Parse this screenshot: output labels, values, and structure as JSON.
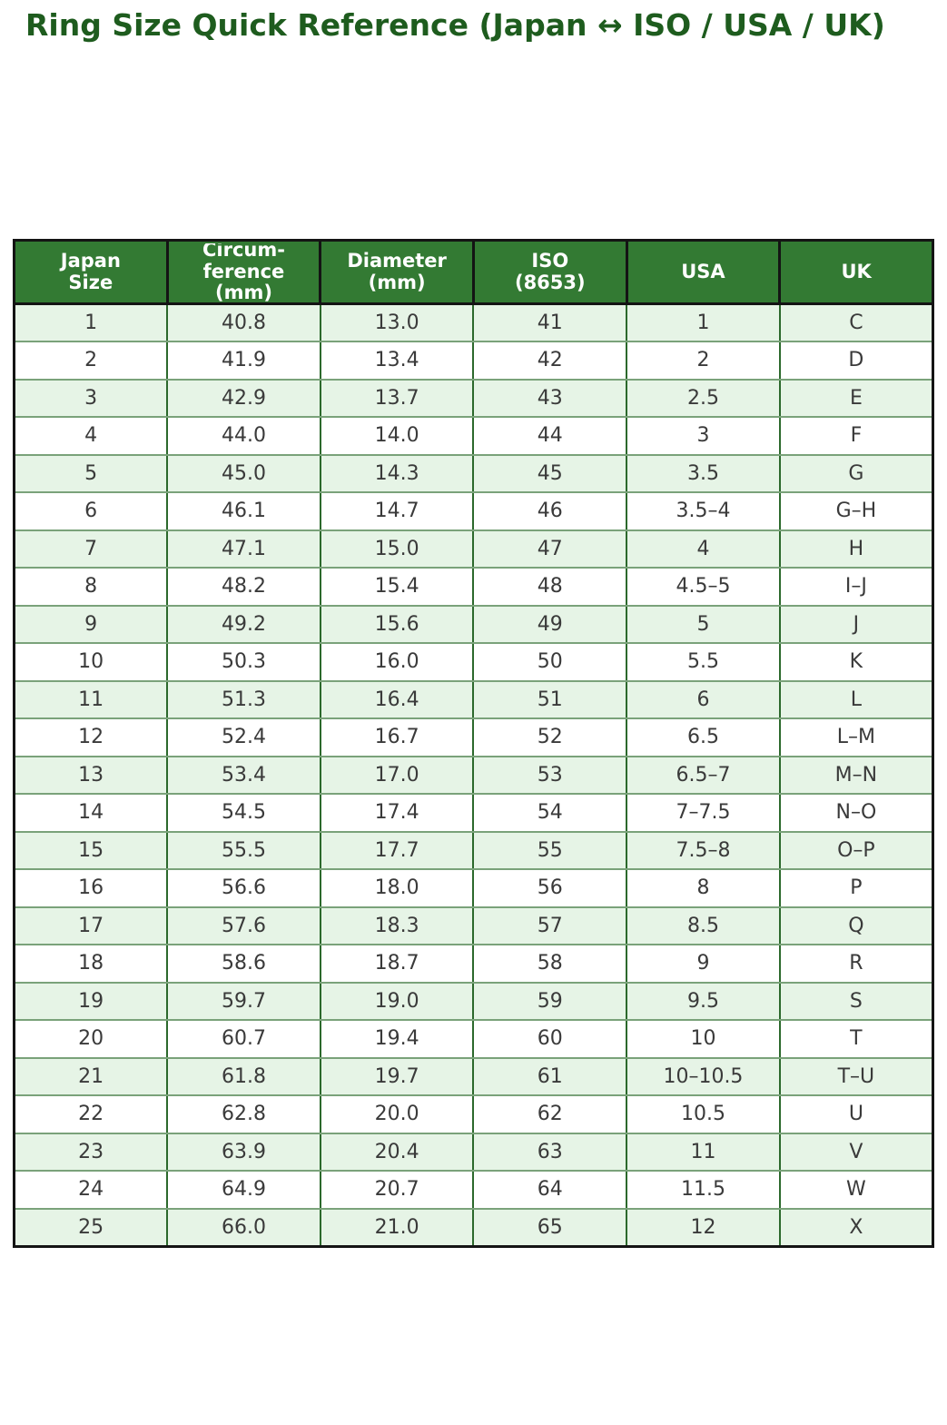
{
  "title": "Ring Size Quick Reference (Japan ↔ ISO / USA / UK)",
  "chart_data": {
    "type": "table",
    "headers": [
      "Japan\nSize",
      "Circum-\nference\n(mm)",
      "Diameter\n(mm)",
      "ISO\n(8653)",
      "USA",
      "UK"
    ],
    "columns": [
      "Japan Size",
      "Circumference (mm)",
      "Diameter (mm)",
      "ISO (8653)",
      "USA",
      "UK"
    ],
    "rows": [
      [
        "1",
        "40.8",
        "13.0",
        "41",
        "1",
        "C"
      ],
      [
        "2",
        "41.9",
        "13.4",
        "42",
        "2",
        "D"
      ],
      [
        "3",
        "42.9",
        "13.7",
        "43",
        "2.5",
        "E"
      ],
      [
        "4",
        "44.0",
        "14.0",
        "44",
        "3",
        "F"
      ],
      [
        "5",
        "45.0",
        "14.3",
        "45",
        "3.5",
        "G"
      ],
      [
        "6",
        "46.1",
        "14.7",
        "46",
        "3.5–4",
        "G–H"
      ],
      [
        "7",
        "47.1",
        "15.0",
        "47",
        "4",
        "H"
      ],
      [
        "8",
        "48.2",
        "15.4",
        "48",
        "4.5–5",
        "I–J"
      ],
      [
        "9",
        "49.2",
        "15.6",
        "49",
        "5",
        "J"
      ],
      [
        "10",
        "50.3",
        "16.0",
        "50",
        "5.5",
        "K"
      ],
      [
        "11",
        "51.3",
        "16.4",
        "51",
        "6",
        "L"
      ],
      [
        "12",
        "52.4",
        "16.7",
        "52",
        "6.5",
        "L–M"
      ],
      [
        "13",
        "53.4",
        "17.0",
        "53",
        "6.5–7",
        "M–N"
      ],
      [
        "14",
        "54.5",
        "17.4",
        "54",
        "7–7.5",
        "N–O"
      ],
      [
        "15",
        "55.5",
        "17.7",
        "55",
        "7.5–8",
        "O–P"
      ],
      [
        "16",
        "56.6",
        "18.0",
        "56",
        "8",
        "P"
      ],
      [
        "17",
        "57.6",
        "18.3",
        "57",
        "8.5",
        "Q"
      ],
      [
        "18",
        "58.6",
        "18.7",
        "58",
        "9",
        "R"
      ],
      [
        "19",
        "59.7",
        "19.0",
        "59",
        "9.5",
        "S"
      ],
      [
        "20",
        "60.7",
        "19.4",
        "60",
        "10",
        "T"
      ],
      [
        "21",
        "61.8",
        "19.7",
        "61",
        "10–10.5",
        "T–U"
      ],
      [
        "22",
        "62.8",
        "20.0",
        "62",
        "10.5",
        "U"
      ],
      [
        "23",
        "63.9",
        "20.4",
        "63",
        "11",
        "V"
      ],
      [
        "24",
        "64.9",
        "20.7",
        "64",
        "11.5",
        "W"
      ],
      [
        "25",
        "66.0",
        "21.0",
        "65",
        "12",
        "X"
      ]
    ]
  },
  "colors": {
    "title": "#1e5c1e",
    "header_bg": "#337a33",
    "header_text": "#ffffff",
    "row_alt_bg": "#e6f4e6",
    "row_bg": "#ffffff",
    "body_text": "#3a3a3a",
    "outer_border": "#141414",
    "row_border": "#7aa27a",
    "col_border": "#2c692c"
  }
}
